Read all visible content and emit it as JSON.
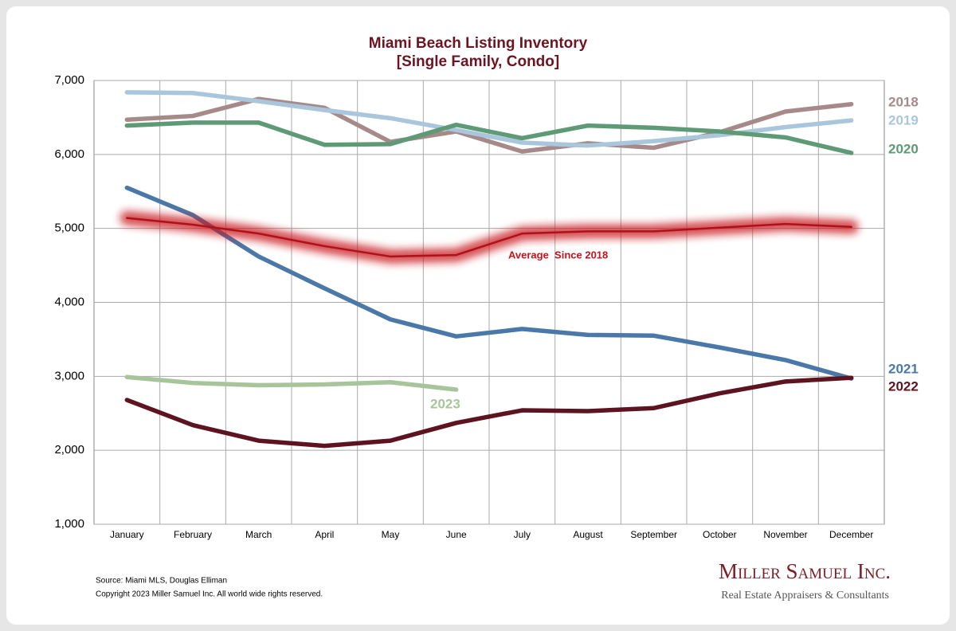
{
  "chart_data": {
    "type": "line",
    "title": "Miami Beach Listing Inventory",
    "subtitle": "[Single Family, Condo]",
    "categories": [
      "January",
      "February",
      "March",
      "April",
      "May",
      "June",
      "July",
      "August",
      "September",
      "October",
      "November",
      "December"
    ],
    "series": [
      {
        "name": "2018",
        "color": "#a68a8a",
        "values": [
          6470,
          6520,
          6750,
          6630,
          6170,
          6310,
          6040,
          6150,
          6090,
          6300,
          6580,
          6680
        ]
      },
      {
        "name": "2019",
        "color": "#a9c6dc",
        "values": [
          6840,
          6830,
          6720,
          6600,
          6490,
          6330,
          6160,
          6120,
          6180,
          6260,
          6370,
          6460
        ]
      },
      {
        "name": "2020",
        "color": "#5e9a76",
        "values": [
          6390,
          6430,
          6430,
          6130,
          6140,
          6400,
          6220,
          6390,
          6360,
          6310,
          6230,
          6020
        ]
      },
      {
        "name": "2021",
        "color": "#4a78a8",
        "values": [
          5550,
          5180,
          4620,
          4190,
          3770,
          3540,
          3640,
          3560,
          3550,
          3390,
          3220,
          2970
        ]
      },
      {
        "name": "2022",
        "color": "#5e1320",
        "values": [
          2680,
          2340,
          2130,
          2060,
          2130,
          2370,
          2540,
          2530,
          2570,
          2770,
          2930,
          2980
        ]
      },
      {
        "name": "2023",
        "color": "#a8c49a",
        "values": [
          2990,
          2910,
          2880,
          2890,
          2920,
          2820,
          null,
          null,
          null,
          null,
          null,
          null
        ]
      },
      {
        "name": "Average  Since 2018",
        "color": "#c8141c",
        "values": [
          5140,
          5050,
          4930,
          4760,
          4620,
          4640,
          4930,
          4960,
          4960,
          5010,
          5060,
          5020
        ]
      }
    ],
    "ylim": [
      1000,
      7000
    ],
    "yticks": [
      {
        "value": 1000,
        "label": "1,000"
      },
      {
        "value": 2000,
        "label": "2,000"
      },
      {
        "value": 3000,
        "label": "3,000"
      },
      {
        "value": 4000,
        "label": "4,000"
      },
      {
        "value": 5000,
        "label": "5,000"
      },
      {
        "value": 6000,
        "label": "6,000"
      },
      {
        "value": 7000,
        "label": "7,000"
      }
    ],
    "grid": true
  },
  "footer": {
    "source": "Source: Miami MLS, Douglas Elliman",
    "copyright": "Copyright 2023 Miller Samuel Inc.  All world wide rights reserved.",
    "logo": "Miller Samuel Inc.",
    "tagline": "Real Estate Appraisers & Consultants"
  }
}
